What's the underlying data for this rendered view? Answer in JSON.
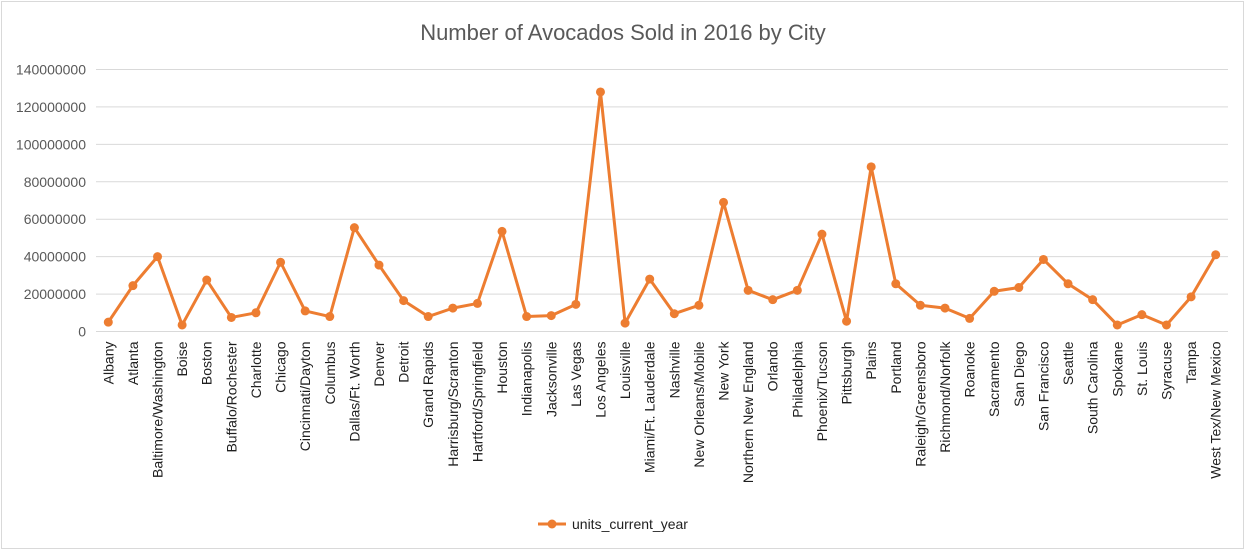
{
  "chart_data": {
    "type": "line",
    "title": "Number of Avocados Sold in 2016 by City",
    "xlabel": "",
    "ylabel": "",
    "ylim": [
      0,
      140000000
    ],
    "yticks": [
      0,
      20000000,
      40000000,
      60000000,
      80000000,
      100000000,
      120000000,
      140000000
    ],
    "ytick_labels": [
      "0",
      "20000000",
      "40000000",
      "60000000",
      "80000000",
      "100000000",
      "120000000",
      "140000000"
    ],
    "grid": true,
    "legend_position": "bottom",
    "color": "#ED7D31",
    "categories": [
      "Albany",
      "Atlanta",
      "Baltimore/Washington",
      "Boise",
      "Boston",
      "Buffalo/Rochester",
      "Charlotte",
      "Chicago",
      "Cincinnati/Dayton",
      "Columbus",
      "Dallas/Ft. Worth",
      "Denver",
      "Detroit",
      "Grand Rapids",
      "Harrisburg/Scranton",
      "Hartford/Springfield",
      "Houston",
      "Indianapolis",
      "Jacksonville",
      "Las Vegas",
      "Los Angeles",
      "Louisville",
      "Miami/Ft. Lauderdale",
      "Nashville",
      "New Orleans/Mobile",
      "New York",
      "Northern New England",
      "Orlando",
      "Philadelphia",
      "Phoenix/Tucson",
      "Pittsburgh",
      "Plains",
      "Portland",
      "Raleigh/Greensboro",
      "Richmond/Norfolk",
      "Roanoke",
      "Sacramento",
      "San Diego",
      "San Francisco",
      "Seattle",
      "South Carolina",
      "Spokane",
      "St. Louis",
      "Syracuse",
      "Tampa",
      "West Tex/New Mexico"
    ],
    "series": [
      {
        "name": "units_current_year",
        "values": [
          5000000,
          24500000,
          40000000,
          3500000,
          27500000,
          7500000,
          10000000,
          37000000,
          11000000,
          8000000,
          55500000,
          35500000,
          16500000,
          8000000,
          12500000,
          15000000,
          53500000,
          8000000,
          8500000,
          14500000,
          128000000,
          4500000,
          28000000,
          9500000,
          14000000,
          69000000,
          22000000,
          17000000,
          22000000,
          52000000,
          5500000,
          88000000,
          25500000,
          14000000,
          12500000,
          7000000,
          21500000,
          23500000,
          38500000,
          25500000,
          17000000,
          3500000,
          9000000,
          3500000,
          18500000,
          41000000
        ]
      }
    ]
  }
}
